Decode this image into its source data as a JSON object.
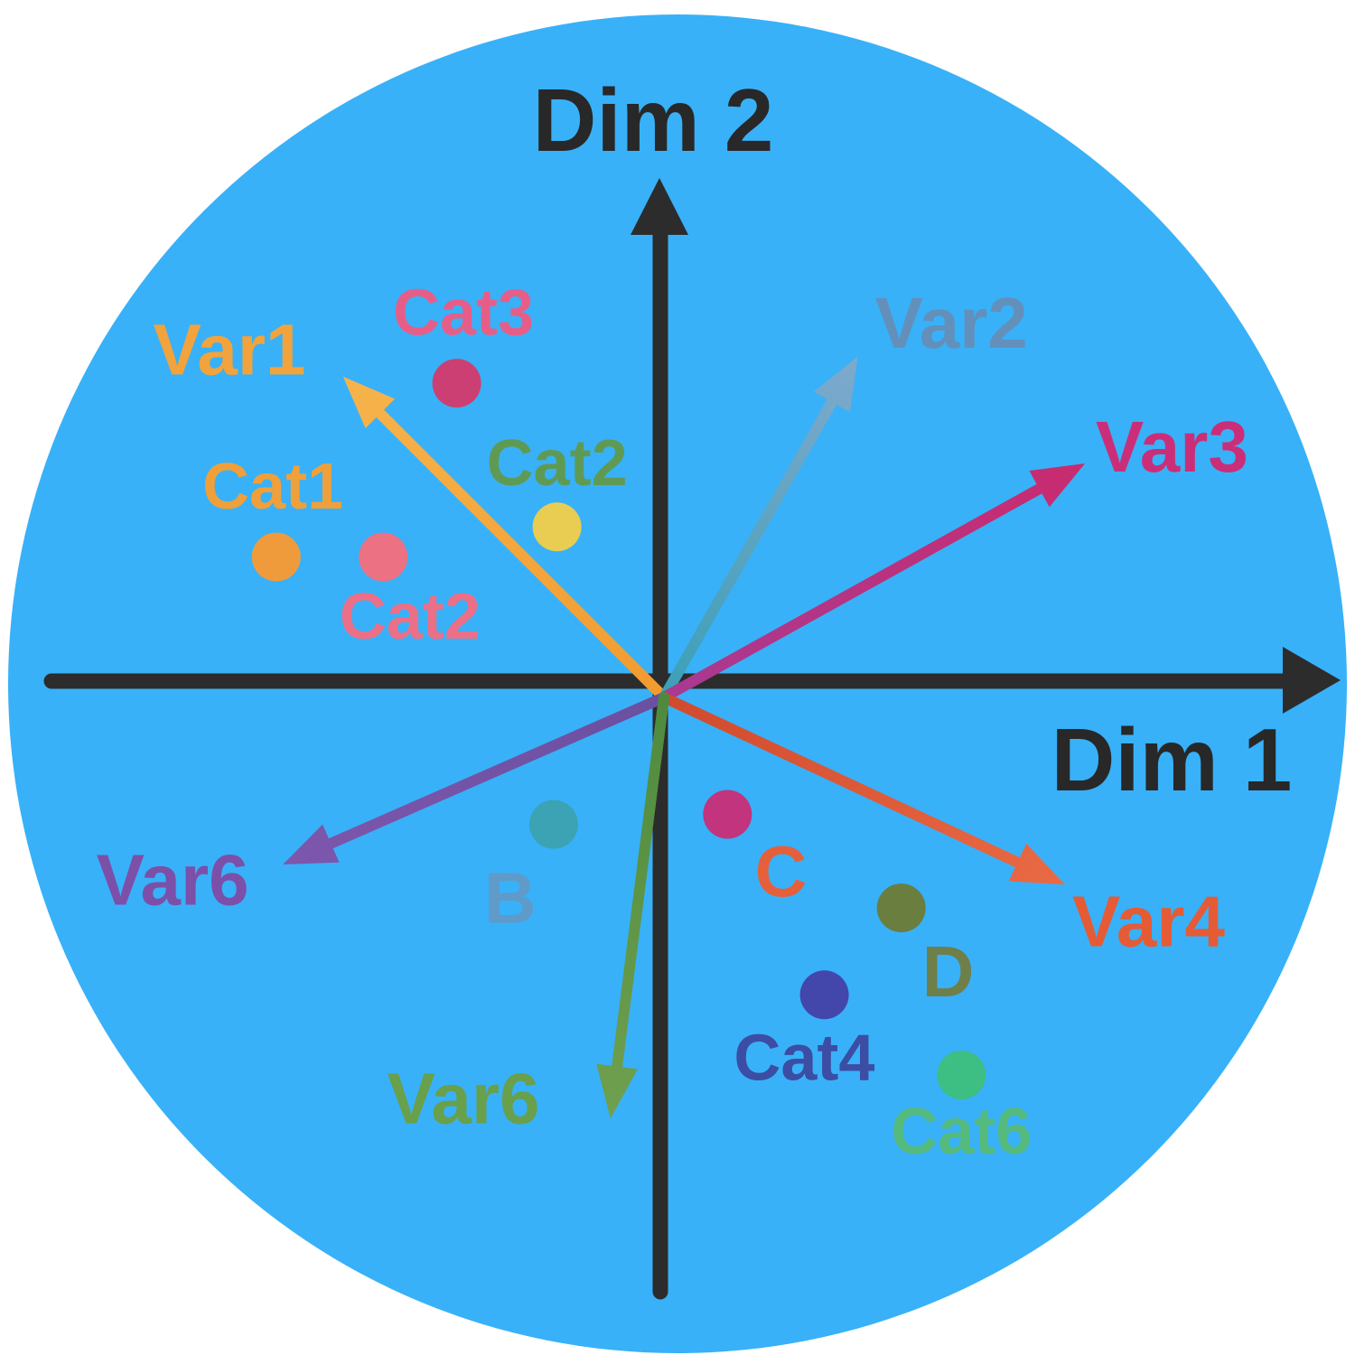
{
  "figure": {
    "background_color": "#FFFFFF",
    "circle_color": "#38B1F8",
    "axis_color": "#2C2C2C",
    "axis_label_color": "#282828",
    "x_axis_label": "Dim 1",
    "y_axis_label": "Dim 2"
  },
  "chart_data": {
    "type": "scatter",
    "subtype": "pca-biplot",
    "title": "",
    "xlabel": "Dim 1",
    "ylabel": "Dim 2",
    "xlim": [
      -1,
      1
    ],
    "ylim": [
      -1,
      1
    ],
    "grid": false,
    "legend": false,
    "variables": [
      {
        "name": "Var1",
        "dim1": -0.48,
        "dim2": 0.48,
        "color_start": "#F29B2F",
        "color_end": "#F6B44C",
        "label_color": "#F2A33C",
        "label_x": -0.65,
        "label_y": 0.52
      },
      {
        "name": "Var2",
        "dim1": 0.29,
        "dim2": 0.51,
        "color_start": "#3BA0B8",
        "color_end": "#7FA9CD",
        "label_color": "#6290BB",
        "label_x": 0.43,
        "label_y": 0.56
      },
      {
        "name": "Var3",
        "dim1": 0.63,
        "dim2": 0.35,
        "color_start": "#A83A92",
        "color_end": "#C92B6F",
        "label_color": "#CB2E79",
        "label_x": 0.76,
        "label_y": 0.375
      },
      {
        "name": "Var4",
        "dim1": 0.6,
        "dim2": -0.28,
        "color_start": "#D04A2D",
        "color_end": "#EA6A45",
        "label_color": "#E55B36",
        "label_x": 0.725,
        "label_y": -0.335
      },
      {
        "name": "Var6",
        "dim1": -0.57,
        "dim2": -0.25,
        "color_start": "#6B4FA0",
        "color_end": "#7D57AD",
        "label_color": "#7C4FA9",
        "label_x": -0.735,
        "label_y": -0.273
      },
      {
        "name": "Var6",
        "dim1": -0.08,
        "dim2": -0.63,
        "color_start": "#4E8A3E",
        "color_end": "#6FA04F",
        "label_color": "#68A04B",
        "label_x": -0.3,
        "label_y": -0.6
      }
    ],
    "points": [
      {
        "name": "Cat3",
        "dim1": -0.31,
        "dim2": 0.47,
        "color": "#CC3F72",
        "label_color": "#E65E88",
        "label_x": -0.3,
        "label_y": 0.575
      },
      {
        "name": "Cat1",
        "dim1": -0.58,
        "dim2": 0.21,
        "color": "#F09B3B",
        "label_color": "#EFA03A",
        "label_x": -0.585,
        "label_y": 0.315
      },
      {
        "name": "Cat2",
        "dim1": -0.42,
        "dim2": 0.21,
        "color": "#EC7183",
        "label_color": "#EC6F88",
        "label_x": -0.38,
        "label_y": 0.12
      },
      {
        "name": "Cat2",
        "dim1": -0.16,
        "dim2": 0.255,
        "color": "#E8CD52",
        "label_color": "#5F9A55",
        "label_x": -0.16,
        "label_y": 0.35
      },
      {
        "name": "B",
        "dim1": -0.165,
        "dim2": -0.19,
        "color": "#3BA3B3",
        "label_color": "#5F9AC9",
        "label_x": -0.23,
        "label_y": -0.3
      },
      {
        "name": "C",
        "dim1": 0.095,
        "dim2": -0.175,
        "color": "#C2347E",
        "label_color": "#E5603A",
        "label_x": 0.175,
        "label_y": -0.26
      },
      {
        "name": "D",
        "dim1": 0.355,
        "dim2": -0.315,
        "color": "#6A7E40",
        "label_color": "#6F7F49",
        "label_x": 0.425,
        "label_y": -0.41
      },
      {
        "name": "Cat4",
        "dim1": 0.24,
        "dim2": -0.445,
        "color": "#4347AC",
        "label_color": "#3C4DA4",
        "label_x": 0.21,
        "label_y": -0.54
      },
      {
        "name": "Cat6",
        "dim1": 0.445,
        "dim2": -0.565,
        "color": "#3DBE82",
        "label_color": "#55BA7D",
        "label_x": 0.445,
        "label_y": -0.65
      }
    ]
  }
}
